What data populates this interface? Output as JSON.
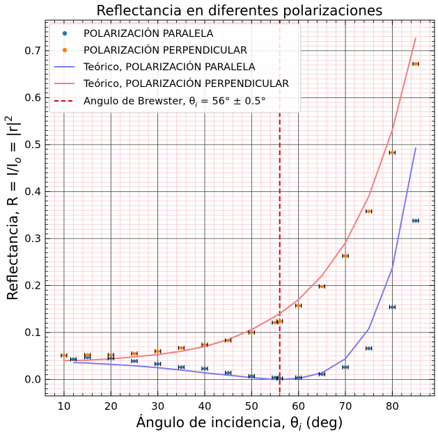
{
  "chart_data": {
    "type": "scatter",
    "title": "Reflectancia en diferentes polarizaciones",
    "xlabel": "Ángulo de incidencia, θ",
    "xlabel_sub": "i",
    "xlabel_unit": " (deg)",
    "ylabel": "Reflectancia, R = I/I",
    "ylabel_sub": "o",
    "ylabel_tail": " = |r|",
    "ylabel_sup": "2",
    "xlim": [
      6,
      89
    ],
    "ylim": [
      -0.035,
      0.765
    ],
    "x_ticks": [
      10,
      20,
      30,
      40,
      50,
      60,
      70,
      80
    ],
    "y_ticks": [
      0.0,
      0.1,
      0.2,
      0.3,
      0.4,
      0.5,
      0.6,
      0.7
    ],
    "x_tick_labels": [
      "10",
      "20",
      "30",
      "40",
      "50",
      "60",
      "70",
      "80"
    ],
    "y_tick_labels": [
      "0.0",
      "0.1",
      "0.2",
      "0.3",
      "0.4",
      "0.5",
      "0.6",
      "0.7"
    ],
    "grid": true,
    "minor_grid": true,
    "legend_position": "top-left",
    "colors": {
      "parallel_points": "#1f77b4",
      "perpendicular_points": "#ff7f0e",
      "parallel_theory": "#7b7bef",
      "perpendicular_theory": "#f27e7e",
      "brewster": "#e00000",
      "major_grid": "#3a3a3a",
      "minor_grid": "#f7c8cc"
    },
    "series": [
      {
        "name": "POLARIZACIÓN PARALELA",
        "kind": "points",
        "x": [
          12,
          15,
          20,
          25,
          30,
          35,
          40,
          45,
          50,
          55,
          56,
          60,
          65,
          70,
          75,
          80,
          85
        ],
        "y": [
          0.043,
          0.047,
          0.045,
          0.039,
          0.033,
          0.026,
          0.023,
          0.014,
          0.007,
          0.004,
          0.002,
          0.004,
          0.011,
          0.026,
          0.066,
          0.154,
          0.338
        ]
      },
      {
        "name": "POLARIZACIÓN PERPENDICULAR",
        "kind": "points",
        "x": [
          10,
          15,
          20,
          25,
          30,
          35,
          40,
          45,
          50,
          55,
          56,
          60,
          65,
          70,
          75,
          80,
          85
        ],
        "y": [
          0.051,
          0.052,
          0.052,
          0.055,
          0.06,
          0.067,
          0.074,
          0.083,
          0.1,
          0.121,
          0.124,
          0.157,
          0.198,
          0.263,
          0.358,
          0.483,
          0.672
        ]
      },
      {
        "name": "Teórico, POLARIZACIÓN PARALELA",
        "kind": "line",
        "x": [
          12,
          15,
          20,
          25,
          30,
          35,
          40,
          45,
          50,
          55,
          56,
          60,
          65,
          70,
          75,
          80,
          85
        ],
        "y": [
          0.036,
          0.035,
          0.032,
          0.029,
          0.025,
          0.02,
          0.014,
          0.009,
          0.004,
          0.0,
          0.0,
          0.002,
          0.014,
          0.044,
          0.108,
          0.237,
          0.494
        ]
      },
      {
        "name": "Teórico, POLARIZACIÓN PERPENDICULAR",
        "kind": "line",
        "x": [
          10,
          15,
          20,
          25,
          30,
          35,
          40,
          45,
          50,
          55,
          56,
          60,
          65,
          70,
          75,
          80,
          85
        ],
        "y": [
          0.04,
          0.041,
          0.044,
          0.048,
          0.053,
          0.06,
          0.07,
          0.085,
          0.106,
          0.134,
          0.14,
          0.17,
          0.221,
          0.291,
          0.39,
          0.531,
          0.728
        ]
      }
    ],
    "brewster": {
      "x": 56,
      "label": "Angulo de Brewster, θ",
      "label_sub": "i",
      "label_tail": " = 56° ± 0.5°"
    }
  }
}
